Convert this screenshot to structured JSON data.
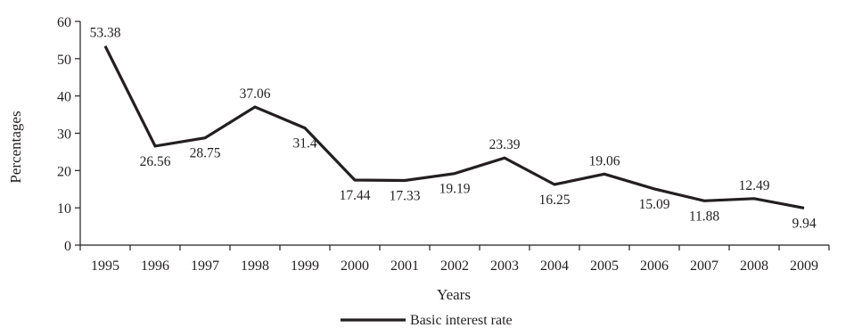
{
  "chart_data": {
    "type": "line",
    "title": "",
    "xlabel": "Years",
    "ylabel": "Percentages",
    "ylim": [
      0,
      60
    ],
    "yticks": [
      0,
      10,
      20,
      30,
      40,
      50,
      60
    ],
    "categories": [
      "1995",
      "1996",
      "1997",
      "1998",
      "1999",
      "2000",
      "2001",
      "2002",
      "2003",
      "2004",
      "2005",
      "2006",
      "2007",
      "2008",
      "2009"
    ],
    "series": [
      {
        "name": "Basic interest rate",
        "color": "#231f20",
        "values": [
          53.38,
          26.56,
          28.75,
          37.06,
          31.4,
          17.44,
          17.33,
          19.19,
          23.39,
          16.25,
          19.06,
          15.09,
          11.88,
          12.49,
          9.94
        ],
        "labels": [
          "53.38",
          "26.56",
          "28.75",
          "37.06",
          "31.4",
          "17.44",
          "17.33",
          "19.19",
          "23.39",
          "16.25",
          "19.06",
          "15.09",
          "11.88",
          "12.49",
          "9.94"
        ]
      }
    ],
    "grid": false,
    "legend_position": "bottom-center"
  }
}
